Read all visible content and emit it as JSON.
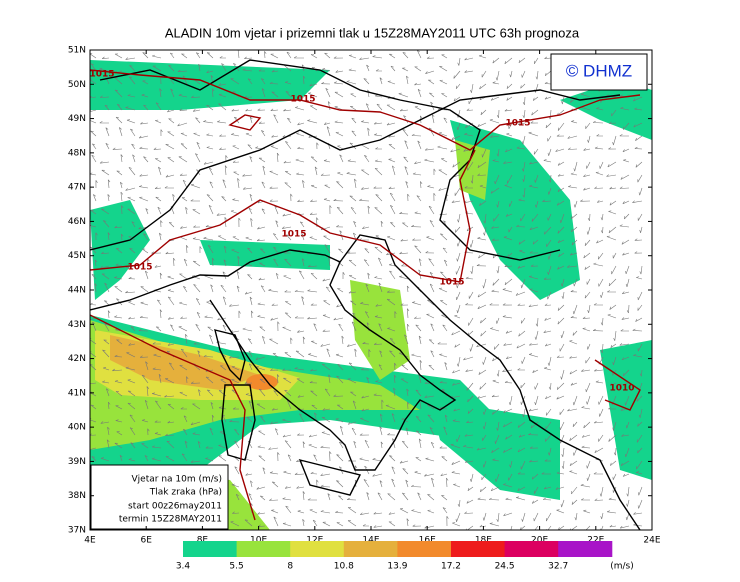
{
  "title": "ALADIN  10m vjetar i prizemni tlak u 15Z28MAY2011 UTC 63h prognoza",
  "logo": "© DHMZ",
  "lat_labels": [
    "51N",
    "50N",
    "49N",
    "48N",
    "47N",
    "46N",
    "45N",
    "44N",
    "43N",
    "42N",
    "41N",
    "40N",
    "39N",
    "38N",
    "37N"
  ],
  "lon_labels": [
    "4E",
    "6E",
    "8E",
    "10E",
    "12E",
    "14E",
    "16E",
    "18E",
    "20E",
    "22E",
    "24E"
  ],
  "isobar_labels": [
    "1015",
    "1015",
    "1015",
    "1015",
    "1015",
    "1015",
    "1010"
  ],
  "info_box": [
    "Vjetar na 10m (m/s)",
    "Tlak zraka (hPa)",
    "start 00z26may2011",
    "termin 15Z28MAY2011"
  ],
  "colorbar": {
    "colors": [
      "#14d48c",
      "#98e33c",
      "#e0e040",
      "#e5b03c",
      "#f28a2c",
      "#ee1c1c",
      "#dc0060",
      "#a814c8"
    ],
    "labels": [
      "3.4",
      "5.5",
      "8",
      "10.8",
      "13.9",
      "17.2",
      "24.5",
      "32.7"
    ],
    "unit": "(m/s)"
  }
}
